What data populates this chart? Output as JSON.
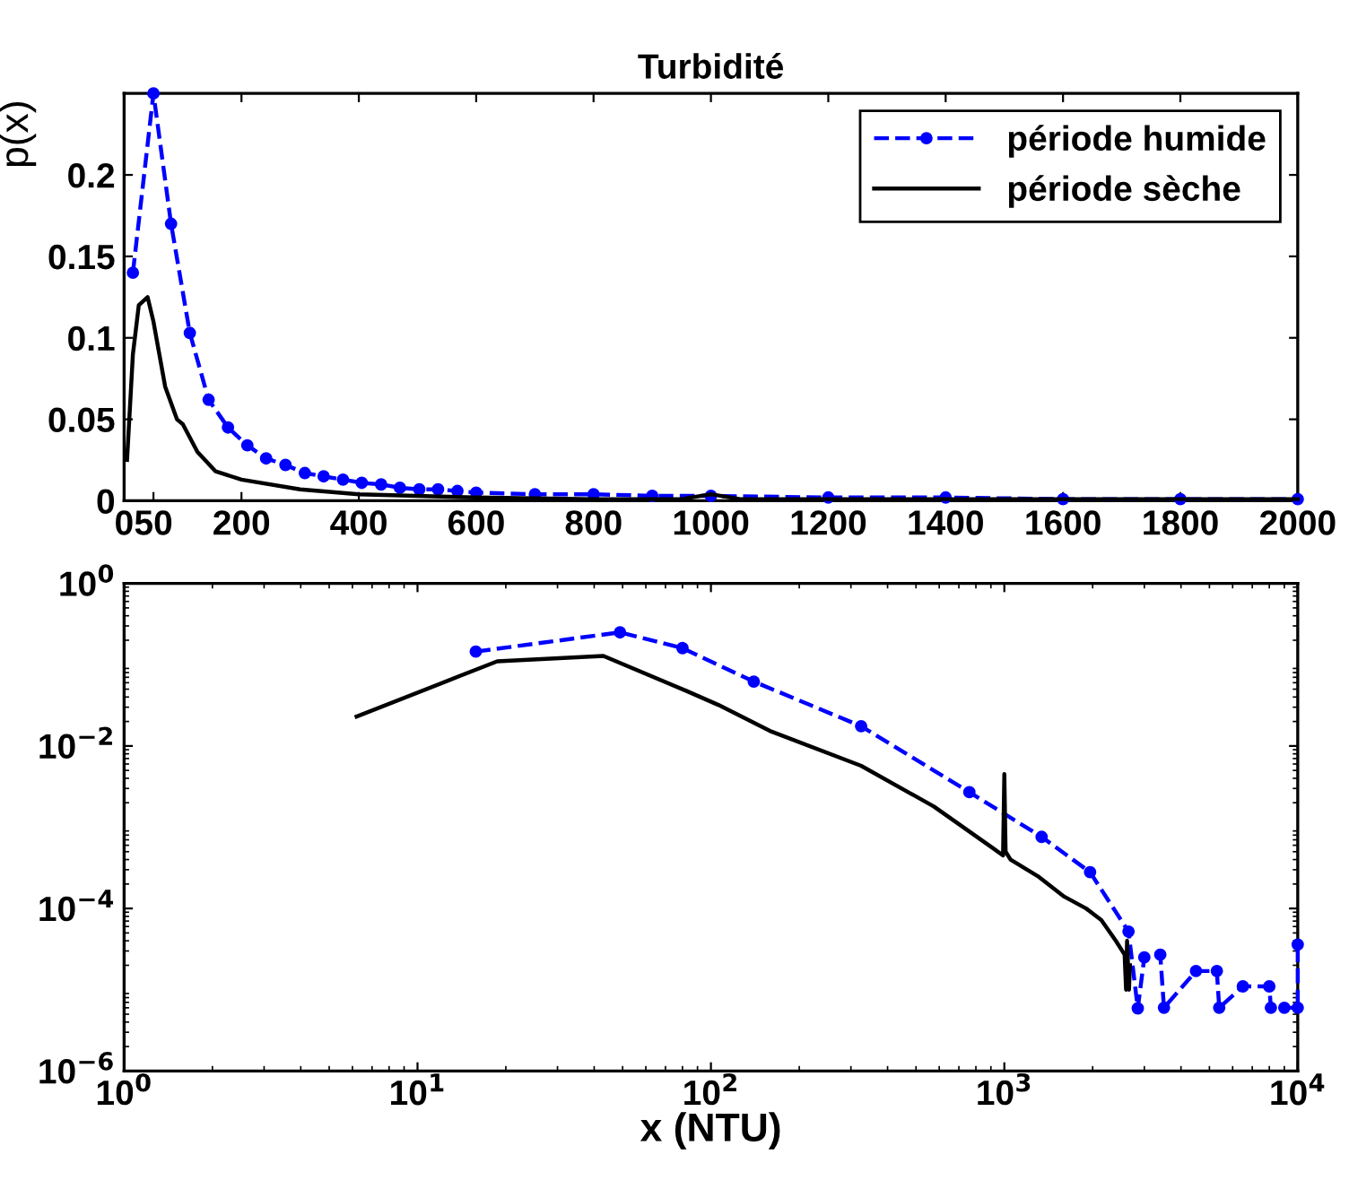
{
  "chart_data": [
    {
      "type": "line",
      "title": "Turbidité",
      "ylabel": "p(x)",
      "xlim": [
        0,
        2000
      ],
      "ylim": [
        0,
        0.25
      ],
      "xticks": [
        0,
        50,
        200,
        400,
        600,
        800,
        1000,
        1200,
        1400,
        1600,
        1800,
        2000
      ],
      "yticks": [
        0,
        0.05,
        0.1,
        0.15,
        0.2
      ],
      "legend": "top right",
      "grid": false,
      "series": [
        {
          "name": "période humide",
          "color": "#0000ff",
          "line_style": "dashed",
          "marker": "circle",
          "x": [
            15,
            50,
            80,
            112,
            144,
            177,
            210,
            242,
            275,
            308,
            340,
            373,
            405,
            438,
            470,
            503,
            535,
            568,
            600,
            700,
            800,
            900,
            1000,
            1200,
            1400,
            1600,
            1800,
            2000
          ],
          "values": [
            0.14,
            0.25,
            0.17,
            0.103,
            0.062,
            0.045,
            0.034,
            0.026,
            0.022,
            0.017,
            0.015,
            0.013,
            0.011,
            0.01,
            0.008,
            0.007,
            0.007,
            0.006,
            0.005,
            0.004,
            0.004,
            0.003,
            0.003,
            0.002,
            0.002,
            0.001,
            0.001,
            0.001
          ]
        },
        {
          "name": "période sèche",
          "color": "#000000",
          "line_style": "solid",
          "marker": "none",
          "x": [
            5,
            15,
            25,
            40,
            50,
            70,
            90,
            100,
            125,
            156,
            200,
            300,
            400,
            600,
            800,
            950,
            1000,
            1050,
            1400,
            2000
          ],
          "values": [
            0.025,
            0.09,
            0.12,
            0.125,
            0.11,
            0.07,
            0.05,
            0.047,
            0.03,
            0.018,
            0.013,
            0.007,
            0.004,
            0.002,
            0.001,
            0.001,
            0.004,
            0.001,
            0.001,
            0.001
          ]
        }
      ]
    },
    {
      "type": "line",
      "xlabel": "x (NTU)",
      "log": "xy",
      "xlim": [
        1,
        10000
      ],
      "ylim": [
        1e-06,
        1
      ],
      "xticks": [
        {
          "value": 1,
          "label": "10$^{0}$"
        },
        {
          "value": 10,
          "label": "10$^{1}$"
        },
        {
          "value": 100,
          "label": "10$^{2}$"
        },
        {
          "value": 1000,
          "label": "10$^{3}$"
        },
        {
          "value": 10000,
          "label": "10$^{4}$"
        }
      ],
      "yticks": [
        {
          "value": 1e-06,
          "label": "10$^{−6}$"
        },
        {
          "value": 0.0001,
          "label": "10$^{−4}$"
        },
        {
          "value": 0.01,
          "label": "10$^{−2}$"
        },
        {
          "value": 1,
          "label": "10$^{0}$"
        }
      ],
      "legend": false,
      "grid": false,
      "series": [
        {
          "color": "#0000ff",
          "line_style": "dashed",
          "marker": "circle",
          "x": [
            15.8,
            49,
            80,
            140,
            325,
            760,
            1340,
            1960,
            2650,
            2850,
            3000,
            3400,
            3500,
            4500,
            5300,
            5400,
            6500,
            8000,
            8100,
            9000,
            10000,
            10000
          ],
          "values": [
            0.145,
            0.25,
            0.16,
            0.062,
            0.0175,
            0.0027,
            0.00076,
            0.00028,
            5.2e-05,
            5.9e-06,
            2.5e-05,
            2.7e-05,
            6e-06,
            1.7e-05,
            1.7e-05,
            6e-06,
            1.1e-05,
            1.1e-05,
            6e-06,
            6e-06,
            6e-06,
            3.6e-05
          ]
        },
        {
          "color": "#000000",
          "line_style": "solid",
          "marker": "none",
          "x": [
            6.2,
            18.7,
            43,
            82,
            106,
            161,
            325,
            575,
            910,
            990,
            1000,
            1010,
            1050,
            1300,
            1600,
            1900,
            2140,
            2400,
            2570,
            2600,
            2620,
            2660,
            2680
          ],
          "values": [
            0.023,
            0.11,
            0.128,
            0.048,
            0.032,
            0.015,
            0.0057,
            0.0018,
            0.00056,
            0.00045,
            0.0045,
            0.0005,
            0.0004,
            0.00025,
            0.00014,
            0.0001,
            7.2e-05,
            4e-05,
            2.7e-05,
            1e-05,
            4e-05,
            1e-05,
            2e-05
          ]
        }
      ]
    }
  ]
}
